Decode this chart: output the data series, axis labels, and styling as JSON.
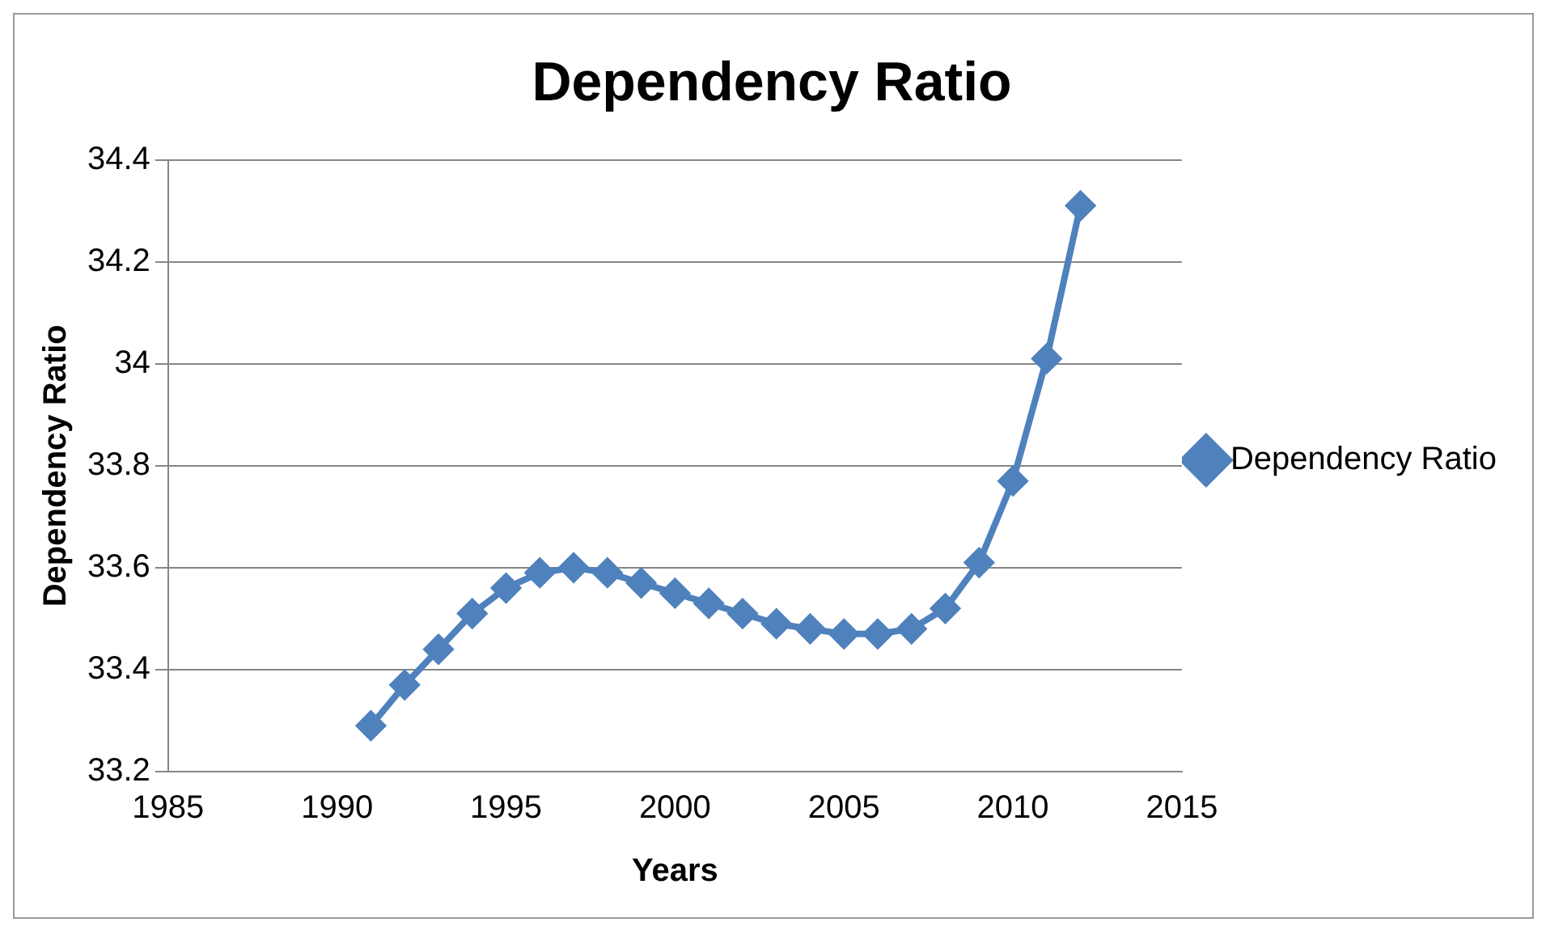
{
  "chart_data": {
    "type": "line",
    "title": "Dependency Ratio",
    "xlabel": "Years",
    "ylabel": "Dependency Ratio",
    "x": [
      1991,
      1992,
      1993,
      1994,
      1995,
      1996,
      1997,
      1998,
      1999,
      2000,
      2001,
      2002,
      2003,
      2004,
      2005,
      2006,
      2007,
      2008,
      2009,
      2010,
      2011,
      2012
    ],
    "series": [
      {
        "name": "Dependency Ratio",
        "color": "#4f81bd",
        "values": [
          33.29,
          33.37,
          33.44,
          33.51,
          33.56,
          33.59,
          33.6,
          33.59,
          33.57,
          33.55,
          33.53,
          33.51,
          33.49,
          33.48,
          33.47,
          33.47,
          33.48,
          33.52,
          33.61,
          33.77,
          34.01,
          34.31
        ]
      }
    ],
    "xlim": [
      1985,
      2015
    ],
    "xticks": [
      1985,
      1990,
      1995,
      2000,
      2005,
      2010,
      2015
    ],
    "ylim": [
      33.2,
      34.4
    ],
    "yticks": [
      33.2,
      33.4,
      33.6,
      33.8,
      34,
      34.2,
      34.4
    ],
    "grid": "y",
    "legend": "right",
    "marker": "diamond",
    "line_style": "solid"
  }
}
